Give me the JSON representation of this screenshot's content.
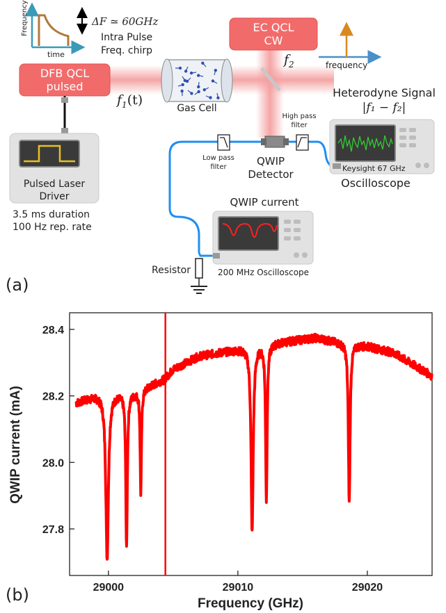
{
  "setup": {
    "chirp_inset": {
      "y_label": "Frequency",
      "x_label": "time"
    },
    "delta_f": "ΔF ≃ 60GHz",
    "chirp_caption_1": "Intra Pulse",
    "chirp_caption_2": "Freq. chirp",
    "dfb_line1": "DFB QCL",
    "dfb_line2": "pulsed",
    "f1": "f",
    "f1_sub": "1",
    "f1_arg": "(t)",
    "ec_line1": "EC QCL",
    "ec_line2": "CW",
    "f2": "f",
    "f2_sub": "2",
    "freq_inset_label": "frequency",
    "gas_cell": "Gas Cell",
    "driver_line1": "Pulsed Laser",
    "driver_line2": "Driver",
    "driver_spec1": "3.5 ms duration",
    "driver_spec2": "100 Hz rep. rate",
    "lowpass_1": "Low pass",
    "lowpass_2": "filter",
    "highpass_1": "High pass",
    "highpass_2": "filter",
    "detector_1": "QWIP",
    "detector_2": "Detector",
    "heterodyne_title": "Heterodyne Signal",
    "heterodyne_formula": "|f₁ − f₂|",
    "osc1_name": "Keysight 67 GHz",
    "osc1_label": "Oscilloscope",
    "qwip_current_title": "QWIP current",
    "osc2_name": "200 MHz Oscilloscope",
    "resistor": "Resistor",
    "panel_a": "(a)",
    "panel_b": "(b)"
  },
  "colors": {
    "laser_box": "#f26b6b",
    "beam": "#f4a0a0",
    "cable": "#1e8ff0",
    "trace": "#ff0000",
    "chirp_curve": "#b07a3a",
    "chirp_axes": "#3a9ab8",
    "instrument_body": "#e2e2e2",
    "screen": "#3a3a3a",
    "pulse": "#e8c020",
    "heterodyne_trace": "#33cc33"
  },
  "chart_data": {
    "type": "line",
    "xlabel": "Frequency  (GHz)",
    "ylabel": "QWIP current  (mA)",
    "xlim": [
      28997,
      29025
    ],
    "ylim": [
      27.66,
      28.45
    ],
    "x_ticks": [
      "29000",
      "29010",
      "29020"
    ],
    "y_ticks": [
      "27.8",
      "28.0",
      "28.2",
      "28.4"
    ],
    "series": [
      {
        "baseline": [
          [
            28997.5,
            28.18
          ],
          [
            28999.0,
            28.2
          ],
          [
            29002.0,
            28.21
          ],
          [
            29004.3,
            28.25
          ],
          [
            29005.0,
            28.28
          ],
          [
            29007.0,
            28.32
          ],
          [
            29010.0,
            28.34
          ],
          [
            29013.0,
            28.36
          ],
          [
            29016.0,
            28.375
          ],
          [
            29018.0,
            28.36
          ],
          [
            29020.0,
            28.35
          ],
          [
            29022.0,
            28.33
          ],
          [
            29025.0,
            28.26
          ]
        ],
        "dips": [
          {
            "center": 28999.9,
            "min": 27.71,
            "width": 0.12
          },
          {
            "center": 29001.4,
            "min": 27.74,
            "width": 0.07
          },
          {
            "center": 29002.5,
            "min": 27.91,
            "width": 0.06
          },
          {
            "center": 29011.1,
            "min": 27.79,
            "width": 0.1
          },
          {
            "center": 29012.2,
            "min": 27.89,
            "width": 0.07
          },
          {
            "center": 29018.6,
            "min": 27.88,
            "width": 0.08
          }
        ],
        "spike": {
          "x": 29004.4,
          "top": 28.45,
          "bottom": 27.66
        },
        "noise_band": 0.012
      }
    ]
  }
}
